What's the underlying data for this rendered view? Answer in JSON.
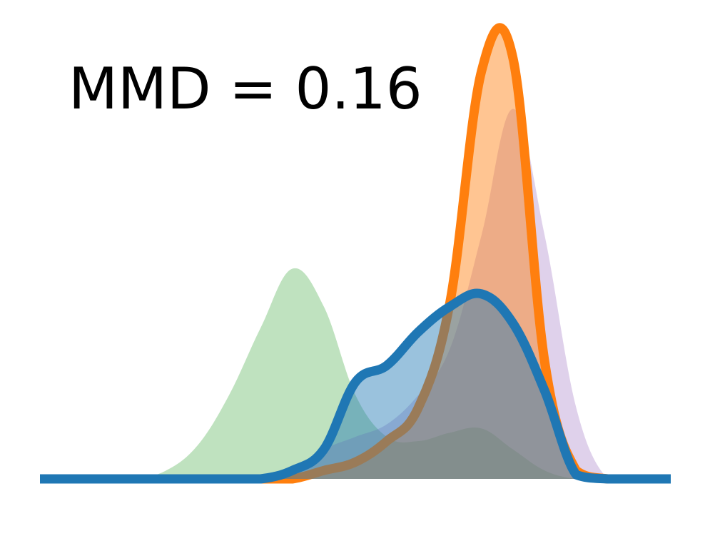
{
  "chart_data": {
    "type": "area",
    "title": "",
    "xlabel": "",
    "ylabel": "",
    "axes_visible": false,
    "grid": false,
    "legend": "none",
    "xlim": [
      0,
      1
    ],
    "ylim": [
      0,
      1
    ],
    "annotation": "MMD = 0.16",
    "x": [
      0.0,
      0.05,
      0.1,
      0.15,
      0.2,
      0.25,
      0.3,
      0.35,
      0.4,
      0.45,
      0.5,
      0.55,
      0.6,
      0.65,
      0.7,
      0.75,
      0.8,
      0.85,
      0.9,
      0.95,
      1.0
    ],
    "series": [
      {
        "color": "#2ca02c",
        "style": "filled",
        "values": [
          0.0,
          0.0,
          0.0,
          0.0,
          0.02,
          0.08,
          0.2,
          0.36,
          0.5,
          0.41,
          0.2,
          0.1,
          0.09,
          0.11,
          0.12,
          0.07,
          0.02,
          0.0,
          0.0,
          0.0,
          0.0
        ]
      },
      {
        "color": "#9467bd",
        "style": "filled",
        "values": [
          0.0,
          0.0,
          0.0,
          0.0,
          0.0,
          0.0,
          0.0,
          0.0,
          0.02,
          0.07,
          0.1,
          0.13,
          0.2,
          0.31,
          0.58,
          0.88,
          0.58,
          0.17,
          0.0,
          0.0,
          0.0
        ]
      },
      {
        "color": "#ff7f0e",
        "style": "filled-outline",
        "values": [
          0.0,
          0.0,
          0.0,
          0.0,
          0.0,
          0.0,
          0.0,
          0.0,
          0.0,
          0.02,
          0.04,
          0.09,
          0.17,
          0.42,
          0.97,
          1.0,
          0.28,
          0.02,
          0.0,
          0.0,
          0.0
        ]
      },
      {
        "color": "#1f77b4",
        "style": "filled-outline",
        "values": [
          0.0,
          0.0,
          0.0,
          0.0,
          0.0,
          0.0,
          0.0,
          0.0,
          0.02,
          0.07,
          0.23,
          0.27,
          0.35,
          0.41,
          0.44,
          0.37,
          0.21,
          0.01,
          0.0,
          0.0,
          0.0
        ]
      }
    ]
  }
}
